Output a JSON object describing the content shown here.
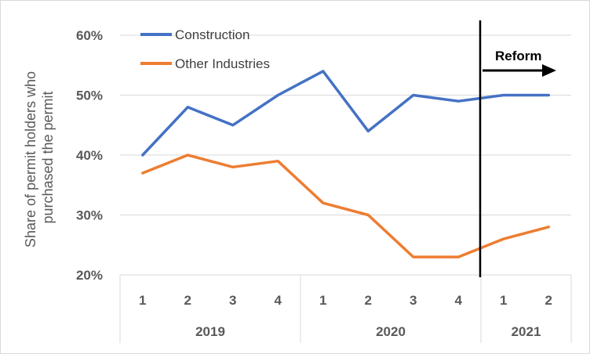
{
  "chart_data": {
    "type": "line",
    "ylabel": [
      "Share of permit holders who",
      "purchased the permit"
    ],
    "yticks": [
      "20%",
      "30%",
      "40%",
      "50%",
      "60%"
    ],
    "ylim": [
      20,
      60
    ],
    "yticks_values": [
      20,
      30,
      40,
      50,
      60
    ],
    "categories": [
      "1",
      "2",
      "3",
      "4",
      "1",
      "2",
      "3",
      "4",
      "1",
      "2"
    ],
    "groups": [
      {
        "label": "2019",
        "count": 4
      },
      {
        "label": "2020",
        "count": 4
      },
      {
        "label": "2021",
        "count": 2
      }
    ],
    "series": [
      {
        "name": "Construction",
        "color": "#4472C4",
        "values": [
          40,
          48,
          45,
          50,
          54,
          44,
          50,
          49,
          50,
          50
        ]
      },
      {
        "name": "Other Industries",
        "color": "#ED7D31",
        "values": [
          37,
          40,
          38,
          39,
          32,
          30,
          23,
          23,
          26,
          28
        ]
      }
    ],
    "grid": true,
    "legend_position": "top-left",
    "annotation": {
      "label": "Reform",
      "between_categories": [
        7,
        8
      ],
      "direction": "right"
    }
  }
}
